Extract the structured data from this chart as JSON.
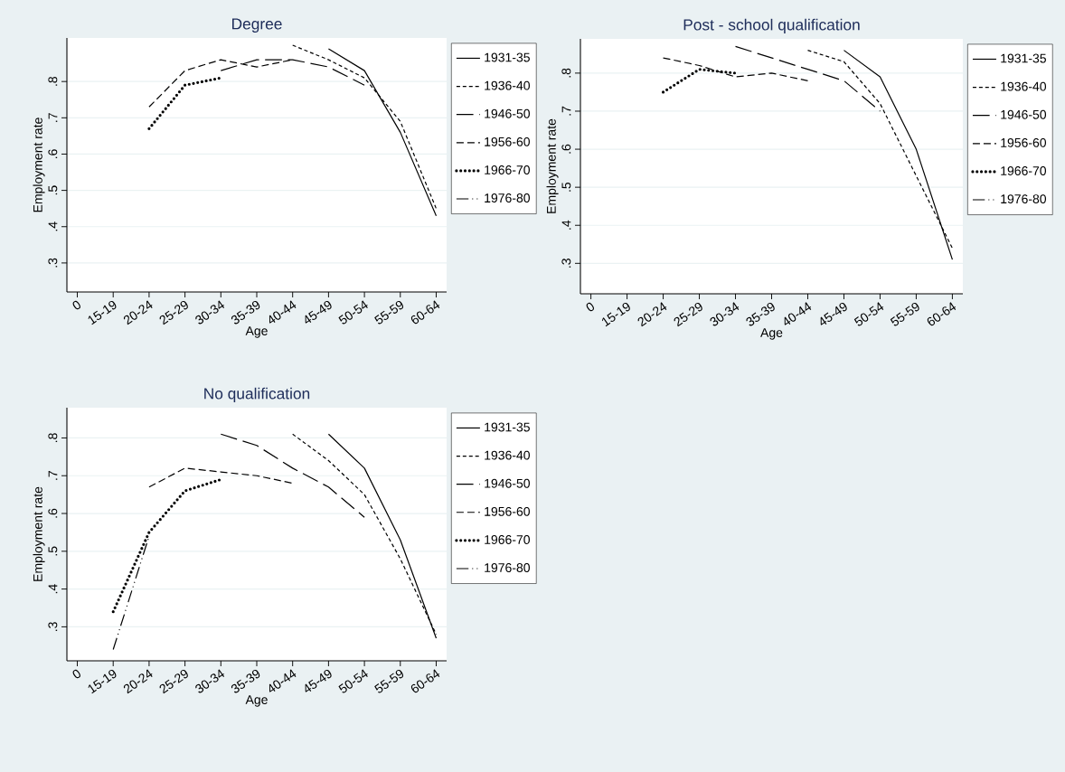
{
  "chart_data": [
    {
      "type": "line",
      "title": "Degree",
      "xlabel": "Age",
      "ylabel": "Employment rate",
      "categories": [
        "0",
        "15-19",
        "20-24",
        "25-29",
        "30-34",
        "35-39",
        "40-44",
        "45-49",
        "50-54",
        "55-59",
        "60-64"
      ],
      "series": [
        {
          "name": "1931-35",
          "color": "#000000",
          "line_style": "solid",
          "values": [
            null,
            null,
            null,
            null,
            null,
            null,
            null,
            0.89,
            0.83,
            0.66,
            0.43
          ]
        },
        {
          "name": "1936-40",
          "color": "#000000",
          "line_style": "shortdash",
          "values": [
            null,
            null,
            null,
            null,
            null,
            null,
            0.9,
            0.86,
            0.81,
            0.69,
            0.45
          ]
        },
        {
          "name": "1946-50",
          "color": "#000000",
          "line_style": "longdash",
          "values": [
            null,
            null,
            null,
            null,
            0.83,
            0.86,
            0.86,
            0.84,
            0.79,
            null,
            null
          ]
        },
        {
          "name": "1956-60",
          "color": "#000000",
          "line_style": "dashed",
          "values": [
            null,
            null,
            0.73,
            0.83,
            0.86,
            0.84,
            0.86,
            null,
            null,
            null,
            null
          ]
        },
        {
          "name": "1966-70",
          "color": "#000000",
          "line_style": "dotted",
          "values": [
            null,
            null,
            0.67,
            0.79,
            0.81,
            null,
            null,
            null,
            null,
            null,
            null
          ]
        },
        {
          "name": "1976-80",
          "color": "#000000",
          "line_style": "dashdot",
          "values": [
            null,
            null,
            null,
            null,
            null,
            null,
            null,
            null,
            null,
            null,
            null
          ]
        }
      ],
      "ylim": [
        0.22,
        0.92
      ],
      "yticks": [
        {
          "value": 0.3,
          "label": ".3"
        },
        {
          "value": 0.4,
          "label": ".4"
        },
        {
          "value": 0.5,
          "label": ".5"
        },
        {
          "value": 0.6,
          "label": ".6"
        },
        {
          "value": 0.7,
          "label": ".7"
        },
        {
          "value": 0.8,
          "label": ".8"
        }
      ],
      "grid": "y",
      "legend": "right"
    },
    {
      "type": "line",
      "title": "Post - school qualification",
      "xlabel": "Age",
      "ylabel": "Employment rate",
      "categories": [
        "0",
        "15-19",
        "20-24",
        "25-29",
        "30-34",
        "35-39",
        "40-44",
        "45-49",
        "50-54",
        "55-59",
        "60-64"
      ],
      "series": [
        {
          "name": "1931-35",
          "color": "#000000",
          "line_style": "solid",
          "values": [
            null,
            null,
            null,
            null,
            null,
            null,
            null,
            0.86,
            0.79,
            0.6,
            0.31
          ]
        },
        {
          "name": "1936-40",
          "color": "#000000",
          "line_style": "shortdash",
          "values": [
            null,
            null,
            null,
            null,
            null,
            null,
            0.86,
            0.83,
            0.72,
            0.53,
            0.34
          ]
        },
        {
          "name": "1946-50",
          "color": "#000000",
          "line_style": "longdash",
          "values": [
            null,
            null,
            null,
            null,
            0.87,
            0.84,
            0.81,
            0.78,
            0.7,
            null,
            null
          ]
        },
        {
          "name": "1956-60",
          "color": "#000000",
          "line_style": "dashed",
          "values": [
            null,
            null,
            0.84,
            0.82,
            0.79,
            0.8,
            0.78,
            null,
            null,
            null,
            null
          ]
        },
        {
          "name": "1966-70",
          "color": "#000000",
          "line_style": "dotted",
          "values": [
            null,
            null,
            0.75,
            0.81,
            0.8,
            null,
            null,
            null,
            null,
            null,
            null
          ]
        },
        {
          "name": "1976-80",
          "color": "#000000",
          "line_style": "dashdot",
          "values": [
            null,
            null,
            null,
            null,
            null,
            null,
            null,
            null,
            null,
            null,
            null
          ]
        }
      ],
      "ylim": [
        0.22,
        0.89
      ],
      "yticks": [
        {
          "value": 0.3,
          "label": ".3"
        },
        {
          "value": 0.4,
          "label": ".4"
        },
        {
          "value": 0.5,
          "label": ".5"
        },
        {
          "value": 0.6,
          "label": ".6"
        },
        {
          "value": 0.7,
          "label": ".7"
        },
        {
          "value": 0.8,
          "label": ".8"
        }
      ],
      "grid": "y",
      "legend": "right"
    },
    {
      "type": "line",
      "title": "No qualification",
      "xlabel": "Age",
      "ylabel": "Employment rate",
      "categories": [
        "0",
        "15-19",
        "20-24",
        "25-29",
        "30-34",
        "35-39",
        "40-44",
        "45-49",
        "50-54",
        "55-59",
        "60-64"
      ],
      "series": [
        {
          "name": "1931-35",
          "color": "#000000",
          "line_style": "solid",
          "values": [
            null,
            null,
            null,
            null,
            null,
            null,
            null,
            0.81,
            0.72,
            0.53,
            0.27
          ]
        },
        {
          "name": "1936-40",
          "color": "#000000",
          "line_style": "shortdash",
          "values": [
            null,
            null,
            null,
            null,
            null,
            null,
            0.81,
            0.74,
            0.65,
            0.48,
            0.28
          ]
        },
        {
          "name": "1946-50",
          "color": "#000000",
          "line_style": "longdash",
          "values": [
            null,
            null,
            null,
            null,
            0.81,
            0.78,
            0.72,
            0.67,
            0.59,
            null,
            null
          ]
        },
        {
          "name": "1956-60",
          "color": "#000000",
          "line_style": "dashed",
          "values": [
            null,
            null,
            0.67,
            0.72,
            0.71,
            0.7,
            0.68,
            null,
            null,
            null,
            null
          ]
        },
        {
          "name": "1966-70",
          "color": "#000000",
          "line_style": "dotted",
          "values": [
            null,
            0.34,
            0.55,
            0.66,
            0.69,
            null,
            null,
            null,
            null,
            null,
            null
          ]
        },
        {
          "name": "1976-80",
          "color": "#000000",
          "line_style": "dashdot",
          "values": [
            null,
            0.24,
            0.54,
            null,
            null,
            null,
            null,
            null,
            null,
            null,
            null
          ]
        }
      ],
      "ylim": [
        0.21,
        0.88
      ],
      "yticks": [
        {
          "value": 0.3,
          "label": ".3"
        },
        {
          "value": 0.4,
          "label": ".4"
        },
        {
          "value": 0.5,
          "label": ".5"
        },
        {
          "value": 0.6,
          "label": ".6"
        },
        {
          "value": 0.7,
          "label": ".7"
        },
        {
          "value": 0.8,
          "label": ".8"
        }
      ],
      "grid": "y",
      "legend": "right"
    }
  ]
}
